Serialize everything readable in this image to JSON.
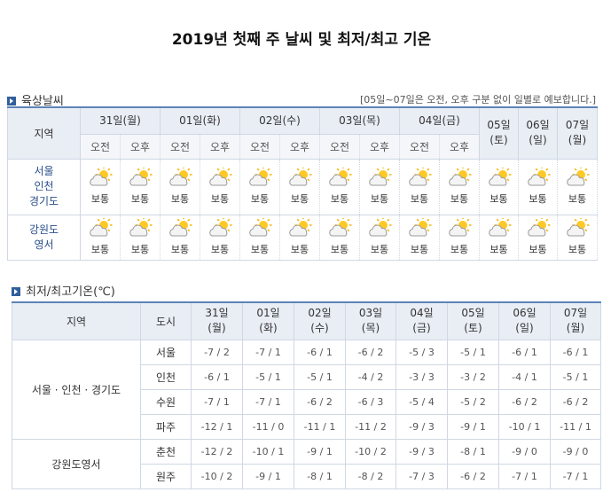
{
  "title": "2019년 첫째 주 날씨 및 최저/최고 기온",
  "land_weather": {
    "title": "육상날씨",
    "note": "[05일~07일은 오전, 오후 구분 없이 일별로 예보합니다.]",
    "header": {
      "region": "지역",
      "days": [
        "31일(월)",
        "01일(화)",
        "02일(수)",
        "03일(목)",
        "04일(금)",
        "05일\n(토)",
        "06일\n(일)",
        "07일\n(월)"
      ],
      "halves": [
        "오전",
        "오후",
        "오전",
        "오후",
        "오전",
        "오후",
        "오전",
        "오후",
        "오전",
        "오후"
      ]
    },
    "rows": [
      {
        "region": "서울\n인천\n경기도",
        "forecasts": [
          "보통",
          "보통",
          "보통",
          "보통",
          "보통",
          "보통",
          "보통",
          "보통",
          "보통",
          "보통",
          "보통",
          "보통",
          "보통"
        ]
      },
      {
        "region": "강원도\n영서",
        "forecasts": [
          "보통",
          "보통",
          "보통",
          "보통",
          "보통",
          "보통",
          "보통",
          "보통",
          "보통",
          "보통",
          "보통",
          "보통",
          "보통"
        ]
      }
    ]
  },
  "temperature": {
    "title": "최저/최고기온(℃)",
    "header": {
      "region": "지역",
      "city": "도시",
      "days": [
        "31일\n(월)",
        "01일\n(화)",
        "02일\n(수)",
        "03일\n(목)",
        "04일\n(금)",
        "05일\n(토)",
        "06일\n(일)",
        "07일\n(월)"
      ]
    },
    "groups": [
      {
        "region": "서울 · 인천 · 경기도",
        "cities": [
          {
            "name": "서울",
            "temps": [
              "-7 / 2",
              "-7 / 1",
              "-6 / 1",
              "-6 / 2",
              "-5 / 3",
              "-5 / 1",
              "-6 / 1",
              "-6 / 1"
            ]
          },
          {
            "name": "인천",
            "temps": [
              "-6 / 1",
              "-5 / 1",
              "-5 / 1",
              "-4 / 2",
              "-3 / 3",
              "-3 / 2",
              "-4 / 1",
              "-5 / 1"
            ]
          },
          {
            "name": "수원",
            "temps": [
              "-7 / 1",
              "-7 / 1",
              "-6 / 2",
              "-6 / 3",
              "-5 / 4",
              "-5 / 2",
              "-6 / 2",
              "-6 / 2"
            ]
          },
          {
            "name": "파주",
            "temps": [
              "-12 / 1",
              "-11 / 0",
              "-11 / 1",
              "-11 / 2",
              "-9 / 3",
              "-9 / 1",
              "-10 / 1",
              "-11 / 1"
            ]
          }
        ]
      },
      {
        "region": "강원도영서",
        "cities": [
          {
            "name": "춘천",
            "temps": [
              "-12 / 2",
              "-10 / 1",
              "-9 / 1",
              "-10 / 2",
              "-9 / 3",
              "-8 / 1",
              "-9 / 0",
              "-9 / 0"
            ]
          },
          {
            "name": "원주",
            "temps": [
              "-10 / 2",
              "-9 / 1",
              "-8 / 1",
              "-8 / 2",
              "-7 / 3",
              "-6 / 2",
              "-7 / 1",
              "-7 / 1"
            ]
          }
        ]
      }
    ]
  }
}
